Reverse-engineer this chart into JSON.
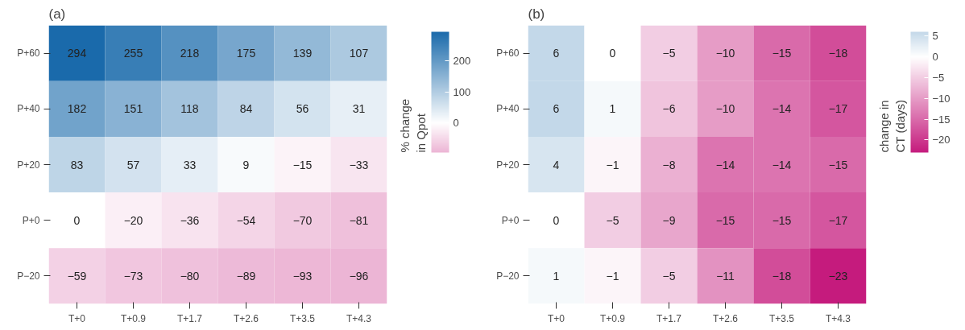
{
  "chart_data": [
    {
      "type": "heatmap",
      "title": "(a)",
      "clabel": "% change\nin Qpot",
      "categories": [
        "T+0",
        "T+0.9",
        "T+1.7",
        "T+2.6",
        "T+3.5",
        "T+4.3"
      ],
      "y_categories": [
        "P+60",
        "P+40",
        "P+20",
        "P+0",
        "P−20"
      ],
      "cells": [
        [
          294,
          255,
          218,
          175,
          139,
          107
        ],
        [
          182,
          151,
          118,
          84,
          56,
          31
        ],
        [
          83,
          57,
          33,
          9,
          -15,
          -33
        ],
        [
          0,
          -20,
          -36,
          -54,
          -70,
          -81
        ],
        [
          -59,
          -73,
          -80,
          -89,
          -93,
          -96
        ]
      ],
      "cell_labels": [
        [
          "294",
          "255",
          "218",
          "175",
          "139",
          "107"
        ],
        [
          "182",
          "151",
          "118",
          "84",
          "56",
          "31"
        ],
        [
          "83",
          "57",
          "33",
          "9",
          "−15",
          "−33"
        ],
        [
          "0",
          "−20",
          "−36",
          "−54",
          "−70",
          "−81"
        ],
        [
          "−59",
          "−73",
          "−80",
          "−89",
          "−93",
          "−96"
        ]
      ],
      "clim": [
        -96,
        294
      ],
      "cticks": [
        0,
        100,
        200
      ]
    },
    {
      "type": "heatmap",
      "title": "(b)",
      "clabel": "change in\nCT (days)",
      "categories": [
        "T+0",
        "T+0.9",
        "T+1.7",
        "T+2.6",
        "T+3.5",
        "T+4.3"
      ],
      "y_categories": [
        "P+60",
        "P+40",
        "P+20",
        "P+0",
        "P−20"
      ],
      "cells": [
        [
          6,
          0,
          -5,
          -10,
          -15,
          -18
        ],
        [
          6,
          1,
          -6,
          -10,
          -14,
          -17
        ],
        [
          4,
          -1,
          -8,
          -14,
          -14,
          -15
        ],
        [
          0,
          -5,
          -9,
          -15,
          -15,
          -17
        ],
        [
          1,
          -1,
          -5,
          -11,
          -18,
          -23
        ]
      ],
      "cell_labels": [
        [
          "6",
          "0",
          "−5",
          "−10",
          "−15",
          "−18"
        ],
        [
          "6",
          "1",
          "−6",
          "−10",
          "−14",
          "−17"
        ],
        [
          "4",
          "−1",
          "−8",
          "−14",
          "−14",
          "−15"
        ],
        [
          "0",
          "−5",
          "−9",
          "−15",
          "−15",
          "−17"
        ],
        [
          "1",
          "−1",
          "−5",
          "−11",
          "−18",
          "−23"
        ]
      ],
      "clim": [
        -23,
        6
      ],
      "cticks": [
        {
          "value": -20,
          "label": "−20"
        },
        {
          "value": -15,
          "label": "−15"
        },
        {
          "value": -10,
          "label": "−10"
        },
        {
          "value": -5,
          "label": "−5"
        },
        0,
        5
      ]
    }
  ]
}
